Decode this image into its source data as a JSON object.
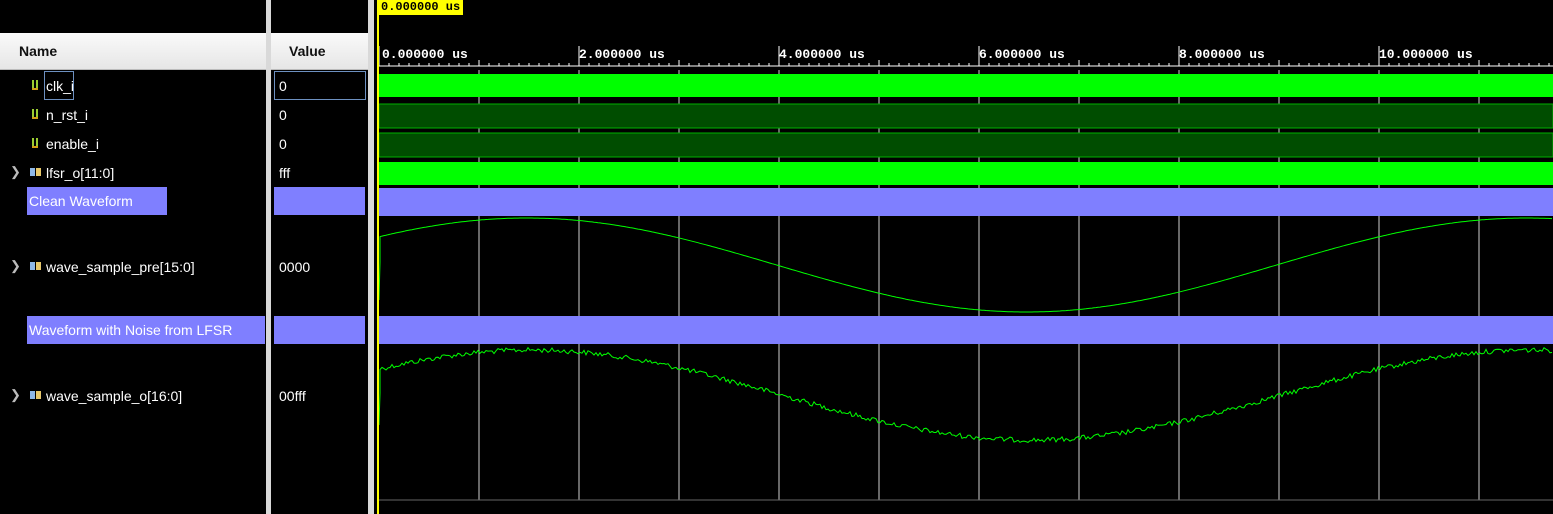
{
  "columns": {
    "name_header": "Name",
    "value_header": "Value"
  },
  "cursor": {
    "label": "0.000000 us"
  },
  "timeline": {
    "ticks": [
      "0.000000 us",
      "2.000000 us",
      "4.000000 us",
      "6.000000 us",
      "8.000000 us",
      "10.000000 us"
    ]
  },
  "signals": [
    {
      "name": "clk_i",
      "value": "0",
      "kind": "bit"
    },
    {
      "name": "n_rst_i",
      "value": "0",
      "kind": "bit"
    },
    {
      "name": "enable_i",
      "value": "0",
      "kind": "bit"
    },
    {
      "name": "lfsr_o[11:0]",
      "value": "fff",
      "kind": "bus"
    },
    {
      "name": "Clean Waveform",
      "value": "",
      "kind": "divider"
    },
    {
      "name": "wave_sample_pre[15:0]",
      "value": "0000",
      "kind": "analog"
    },
    {
      "name": "Waveform with Noise from LFSR",
      "value": "",
      "kind": "divider"
    },
    {
      "name": "wave_sample_o[16:0]",
      "value": "00fff",
      "kind": "analog"
    }
  ],
  "colors": {
    "wave_green": "#00ff00",
    "wave_dark_green": "#004d00",
    "divider": "#7f7fff",
    "cursor_yellow": "#ffff00",
    "grid": "#ffffff"
  }
}
